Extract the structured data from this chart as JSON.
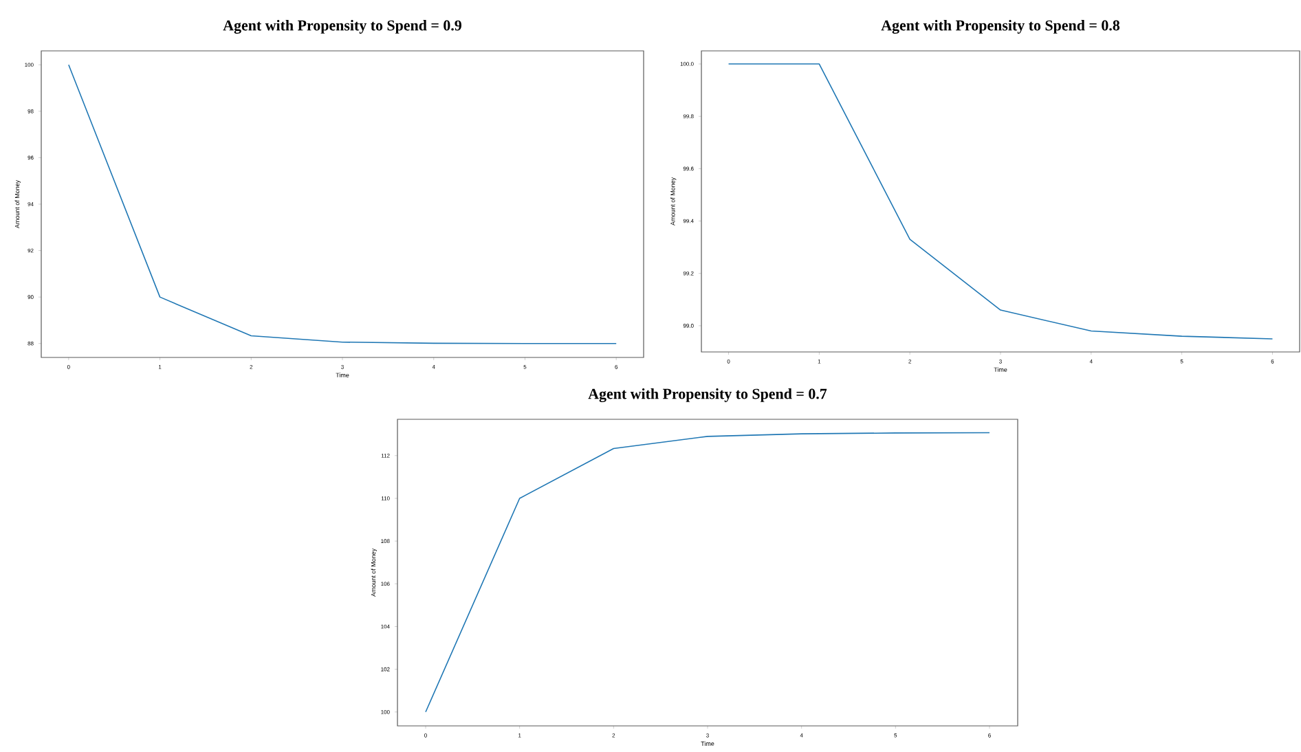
{
  "chart_data": [
    {
      "type": "line",
      "title": "Agent with Propensity to Spend = 0.9",
      "xlabel": "Time",
      "ylabel": "Amount of Money",
      "x": [
        0,
        1,
        2,
        3,
        4,
        5,
        6
      ],
      "series": [
        {
          "color": "#1f77b4",
          "values": [
            100,
            90,
            88.33,
            88.06,
            88.01,
            88.0,
            88.0
          ]
        }
      ],
      "xlim": [
        -0.3,
        6.3
      ],
      "ylim": [
        87.4,
        100.6
      ],
      "xticks": [
        0,
        1,
        2,
        3,
        4,
        5,
        6
      ],
      "yticks": [
        88,
        90,
        92,
        94,
        96,
        98,
        100
      ]
    },
    {
      "type": "line",
      "title": "Agent with Propensity to Spend = 0.8",
      "xlabel": "Time",
      "ylabel": "Amount of Money",
      "x": [
        0,
        1,
        2,
        3,
        4,
        5,
        6
      ],
      "series": [
        {
          "color": "#1f77b4",
          "values": [
            100.0,
            100.0,
            99.33,
            99.06,
            98.98,
            98.96,
            98.95
          ]
        }
      ],
      "xlim": [
        -0.3,
        6.3
      ],
      "ylim": [
        98.9,
        100.05
      ],
      "xticks": [
        0,
        1,
        2,
        3,
        4,
        5,
        6
      ],
      "yticks": [
        {
          "value": 99.0,
          "label": "99.0"
        },
        99.2,
        99.4,
        99.6,
        99.8,
        {
          "value": 100.0,
          "label": "100.0"
        }
      ]
    },
    {
      "type": "line",
      "title": "Agent with Propensity to Spend = 0.7",
      "xlabel": "Time",
      "ylabel": "Amount of Money",
      "x": [
        0,
        1,
        2,
        3,
        4,
        5,
        6
      ],
      "series": [
        {
          "color": "#1f77b4",
          "values": [
            100,
            110,
            112.33,
            112.9,
            113.02,
            113.06,
            113.07
          ]
        }
      ],
      "xlim": [
        -0.3,
        6.3
      ],
      "ylim": [
        99.35,
        113.7
      ],
      "xticks": [
        0,
        1,
        2,
        3,
        4,
        5,
        6
      ],
      "yticks": [
        100,
        102,
        104,
        106,
        108,
        110,
        112
      ]
    }
  ]
}
